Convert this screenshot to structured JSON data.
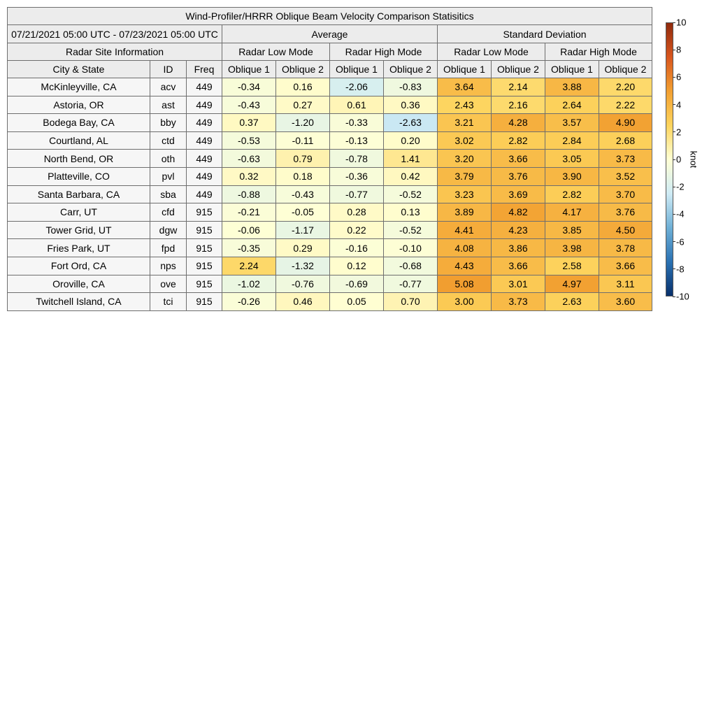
{
  "table": {
    "title": "Wind-Profiler/HRRR Oblique Beam Velocity Comparison Statisitics",
    "date_range": "07/21/2021 05:00 UTC - 07/23/2021 05:00 UTC",
    "group_average": "Average",
    "group_std": "Standard Deviation",
    "site_info": "Radar Site Information",
    "low_mode": "Radar Low Mode",
    "high_mode": "Radar High Mode",
    "col_city": "City & State",
    "col_id": "ID",
    "col_freq": "Freq",
    "oblique1": "Oblique 1",
    "oblique2": "Oblique 2",
    "rows": [
      {
        "city": "McKinleyville, CA",
        "id": "acv",
        "freq": "449",
        "avg": [
          "-0.34",
          "0.16",
          "-2.06",
          "-0.83"
        ],
        "std": [
          "3.64",
          "2.14",
          "3.88",
          "2.20"
        ]
      },
      {
        "city": "Astoria, OR",
        "id": "ast",
        "freq": "449",
        "avg": [
          "-0.43",
          "0.27",
          "0.61",
          "0.36"
        ],
        "std": [
          "2.43",
          "2.16",
          "2.64",
          "2.22"
        ]
      },
      {
        "city": "Bodega Bay, CA",
        "id": "bby",
        "freq": "449",
        "avg": [
          "0.37",
          "-1.20",
          "-0.33",
          "-2.63"
        ],
        "std": [
          "3.21",
          "4.28",
          "3.57",
          "4.90"
        ]
      },
      {
        "city": "Courtland, AL",
        "id": "ctd",
        "freq": "449",
        "avg": [
          "-0.53",
          "-0.11",
          "-0.13",
          "0.20"
        ],
        "std": [
          "3.02",
          "2.82",
          "2.84",
          "2.68"
        ]
      },
      {
        "city": "North Bend, OR",
        "id": "oth",
        "freq": "449",
        "avg": [
          "-0.63",
          "0.79",
          "-0.78",
          "1.41"
        ],
        "std": [
          "3.20",
          "3.66",
          "3.05",
          "3.73"
        ]
      },
      {
        "city": "Platteville, CO",
        "id": "pvl",
        "freq": "449",
        "avg": [
          "0.32",
          "0.18",
          "-0.36",
          "0.42"
        ],
        "std": [
          "3.79",
          "3.76",
          "3.90",
          "3.52"
        ]
      },
      {
        "city": "Santa Barbara, CA",
        "id": "sba",
        "freq": "449",
        "avg": [
          "-0.88",
          "-0.43",
          "-0.77",
          "-0.52"
        ],
        "std": [
          "3.23",
          "3.69",
          "2.82",
          "3.70"
        ]
      },
      {
        "city": "Carr, UT",
        "id": "cfd",
        "freq": "915",
        "avg": [
          "-0.21",
          "-0.05",
          "0.28",
          "0.13"
        ],
        "std": [
          "3.89",
          "4.82",
          "4.17",
          "3.76"
        ]
      },
      {
        "city": "Tower Grid, UT",
        "id": "dgw",
        "freq": "915",
        "avg": [
          "-0.06",
          "-1.17",
          "0.22",
          "-0.52"
        ],
        "std": [
          "4.41",
          "4.23",
          "3.85",
          "4.50"
        ]
      },
      {
        "city": "Fries Park, UT",
        "id": "fpd",
        "freq": "915",
        "avg": [
          "-0.35",
          "0.29",
          "-0.16",
          "-0.10"
        ],
        "std": [
          "4.08",
          "3.86",
          "3.98",
          "3.78"
        ]
      },
      {
        "city": "Fort Ord, CA",
        "id": "nps",
        "freq": "915",
        "avg": [
          "2.24",
          "-1.32",
          "0.12",
          "-0.68"
        ],
        "std": [
          "4.43",
          "3.66",
          "2.58",
          "3.66"
        ]
      },
      {
        "city": "Oroville, CA",
        "id": "ove",
        "freq": "915",
        "avg": [
          "-1.02",
          "-0.76",
          "-0.69",
          "-0.77"
        ],
        "std": [
          "5.08",
          "3.01",
          "4.97",
          "3.11"
        ]
      },
      {
        "city": "Twitchell Island, CA",
        "id": "tci",
        "freq": "915",
        "avg": [
          "-0.26",
          "0.46",
          "0.05",
          "0.70"
        ],
        "std": [
          "3.00",
          "3.73",
          "2.63",
          "3.60"
        ]
      }
    ]
  },
  "colorbar": {
    "unit": "knot",
    "ticks": [
      "10",
      "8",
      "6",
      "4",
      "2",
      "0",
      "-2",
      "-4",
      "-6",
      "-8",
      "-10"
    ],
    "range": [
      -10,
      10
    ],
    "colormap_stops": [
      "#08306b",
      "#2b72b3",
      "#6fb0d6",
      "#cfebf5",
      "#ffffd4",
      "#fdd45d",
      "#f2a031",
      "#d8561e",
      "#8f2a0d"
    ]
  },
  "chart_data": {
    "type": "table",
    "title": "Wind-Profiler/HRRR Oblique Beam Velocity Comparison Statisitics",
    "subtitle": "07/21/2021 05:00 UTC - 07/23/2021 05:00 UTC",
    "columns": [
      "City & State",
      "ID",
      "Freq",
      "Average Radar Low Mode Oblique 1",
      "Average Radar Low Mode Oblique 2",
      "Average Radar High Mode Oblique 1",
      "Average Radar High Mode Oblique 2",
      "Standard Deviation Radar Low Mode Oblique 1",
      "Standard Deviation Radar Low Mode Oblique 2",
      "Standard Deviation Radar High Mode Oblique 1",
      "Standard Deviation Radar High Mode Oblique 2"
    ],
    "colorbar": {
      "label": "knot",
      "range": [
        -10,
        10
      ]
    }
  }
}
